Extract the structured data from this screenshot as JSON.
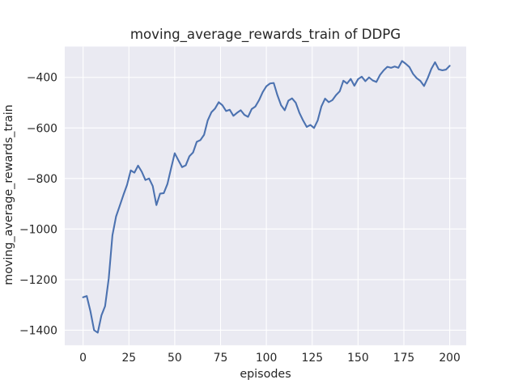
{
  "chart_data": {
    "type": "line",
    "title": "moving_average_rewards_train of DDPG",
    "xlabel": "episodes",
    "ylabel": "moving_average_rewards_train",
    "xticks": [
      0,
      25,
      50,
      75,
      100,
      125,
      150,
      175,
      200
    ],
    "yticks": [
      -400,
      -600,
      -800,
      -1000,
      -1200,
      -1400
    ],
    "xlim": [
      -10,
      209
    ],
    "ylim": [
      -1460,
      -278
    ],
    "grid": true,
    "legend": "none",
    "style": {
      "figure_bg": "#ffffff",
      "axes_bg": "#eaeaf2",
      "grid_color": "#ffffff",
      "line_color": "#4c72b0",
      "text_color": "#262626"
    },
    "x": [
      0,
      2,
      4,
      6,
      8,
      10,
      12,
      14,
      16,
      18,
      20,
      22,
      24,
      26,
      28,
      30,
      32,
      34,
      36,
      38,
      40,
      42,
      44,
      46,
      48,
      50,
      52,
      54,
      56,
      58,
      60,
      62,
      64,
      66,
      68,
      70,
      72,
      74,
      76,
      78,
      80,
      82,
      84,
      86,
      88,
      90,
      92,
      94,
      96,
      98,
      100,
      102,
      104,
      106,
      108,
      110,
      112,
      114,
      116,
      118,
      120,
      122,
      124,
      126,
      128,
      130,
      132,
      134,
      136,
      138,
      140,
      142,
      144,
      146,
      148,
      150,
      152,
      154,
      156,
      158,
      160,
      162,
      164,
      166,
      168,
      170,
      172,
      174,
      176,
      178,
      180,
      182,
      184,
      186,
      188,
      190,
      192,
      194,
      196,
      198,
      200
    ],
    "series": [
      {
        "name": "moving_average_rewards_train",
        "color": "#4c72b0",
        "values": [
          -1270,
          -1265,
          -1325,
          -1400,
          -1410,
          -1342,
          -1305,
          -1195,
          -1025,
          -950,
          -908,
          -865,
          -825,
          -768,
          -777,
          -749,
          -773,
          -806,
          -800,
          -830,
          -905,
          -860,
          -858,
          -822,
          -760,
          -700,
          -728,
          -755,
          -748,
          -712,
          -697,
          -655,
          -648,
          -627,
          -570,
          -538,
          -523,
          -498,
          -510,
          -533,
          -528,
          -552,
          -540,
          -530,
          -548,
          -556,
          -525,
          -515,
          -490,
          -458,
          -435,
          -424,
          -422,
          -470,
          -510,
          -530,
          -492,
          -483,
          -500,
          -540,
          -570,
          -596,
          -588,
          -600,
          -570,
          -515,
          -484,
          -498,
          -490,
          -470,
          -455,
          -413,
          -424,
          -406,
          -433,
          -407,
          -397,
          -415,
          -400,
          -412,
          -418,
          -390,
          -372,
          -358,
          -362,
          -357,
          -362,
          -335,
          -346,
          -359,
          -386,
          -403,
          -414,
          -434,
          -403,
          -366,
          -340,
          -368,
          -372,
          -369,
          -354
        ]
      }
    ]
  }
}
